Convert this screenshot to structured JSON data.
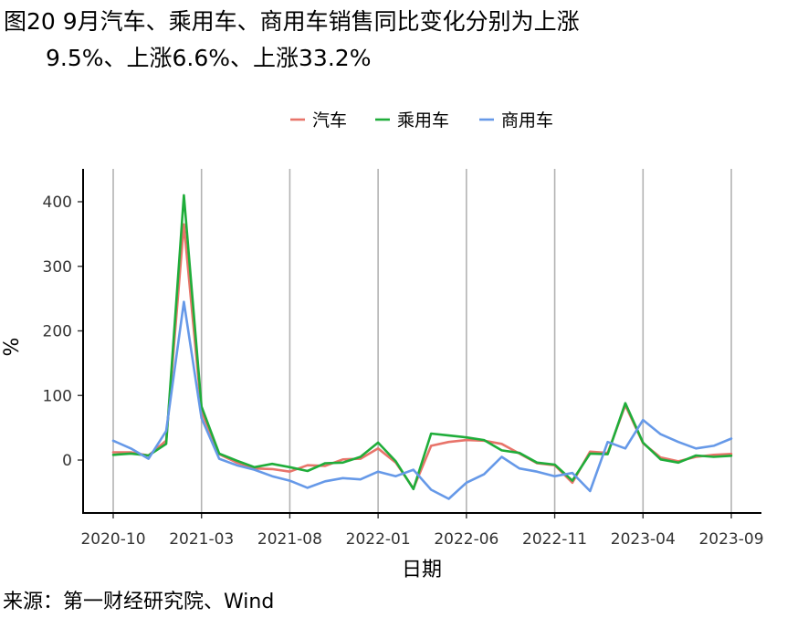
{
  "title_line1": "图20 9月汽车、乘用车、商用车销售同比变化分别为上涨",
  "title_line2": "9.5%、上涨6.6%、上涨33.2%",
  "source": "来源：第一财经研究院、Wind",
  "chart_data": {
    "type": "line",
    "xlabel": "日期",
    "ylabel": "%",
    "ylim": [
      -85,
      425
    ],
    "yticks": [
      0,
      100,
      200,
      300,
      400
    ],
    "xticks": [
      "2020-10",
      "2021-03",
      "2021-08",
      "2022-01",
      "2022-06",
      "2022-11",
      "2023-04",
      "2023-09"
    ],
    "grid": "vertical major lines only",
    "legend_position": "top",
    "x": [
      "2020-10",
      "2020-11",
      "2020-12",
      "2021-01",
      "2021-02",
      "2021-03",
      "2021-04",
      "2021-05",
      "2021-06",
      "2021-07",
      "2021-08",
      "2021-09",
      "2021-10",
      "2021-11",
      "2021-12",
      "2022-01",
      "2022-02",
      "2022-03",
      "2022-04",
      "2022-05",
      "2022-06",
      "2022-07",
      "2022-08",
      "2022-09",
      "2022-10",
      "2022-11",
      "2022-12",
      "2023-01",
      "2023-02",
      "2023-03",
      "2023-04",
      "2023-05",
      "2023-06",
      "2023-07",
      "2023-08",
      "2023-09"
    ],
    "series": [
      {
        "name": "汽车",
        "color": "#E8746A",
        "values": [
          12,
          12,
          7,
          30,
          365,
          75,
          9,
          -4,
          -13,
          -14,
          -18,
          -8,
          -9,
          1,
          2,
          18,
          -4,
          -44,
          22,
          28,
          31,
          30,
          25,
          10,
          -5,
          -8,
          -35,
          13,
          11,
          85,
          26,
          4,
          -2,
          5,
          8,
          9.5
        ]
      },
      {
        "name": "乘用车",
        "color": "#1FAD3A",
        "values": [
          8,
          10,
          7,
          25,
          410,
          83,
          10,
          -1,
          -11,
          -6,
          -11,
          -17,
          -5,
          -4,
          5,
          27,
          -2,
          -45,
          41,
          38,
          35,
          31,
          15,
          11,
          -4,
          -7,
          -32,
          10,
          9,
          88,
          27,
          1,
          -4,
          7,
          5,
          6.6
        ]
      },
      {
        "name": "商用车",
        "color": "#6699E8",
        "values": [
          30,
          18,
          2,
          45,
          245,
          65,
          2,
          -8,
          -15,
          -25,
          -32,
          -43,
          -33,
          -28,
          -30,
          -18,
          -25,
          -15,
          -46,
          -60,
          -35,
          -22,
          5,
          -13,
          -18,
          -25,
          -20,
          -48,
          28,
          18,
          62,
          40,
          28,
          18,
          22,
          33.2
        ]
      }
    ]
  }
}
